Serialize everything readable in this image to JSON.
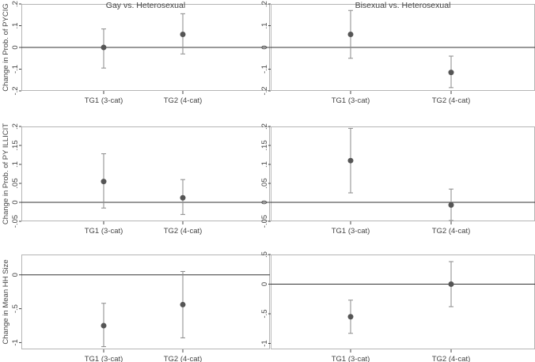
{
  "chart_data": [
    {
      "type": "scatter",
      "title": "Gay vs. Heterosexual",
      "ylabel": "Change in Prob. of PYCIG",
      "categories": [
        "TG1 (3-cat)",
        "TG2 (4-cat)"
      ],
      "ylim": [
        -0.2,
        0.2
      ],
      "yticks": [
        -0.2,
        -0.1,
        0,
        0.1,
        0.2
      ],
      "ytick_labels": [
        "-.2",
        "-.1",
        "0",
        ".1",
        ".2"
      ],
      "points": [
        {
          "category": "TG1 (3-cat)",
          "estimate": 0.0,
          "ci_low": -0.095,
          "ci_high": 0.085
        },
        {
          "category": "TG2 (4-cat)",
          "estimate": 0.06,
          "ci_low": -0.03,
          "ci_high": 0.155
        }
      ]
    },
    {
      "type": "scatter",
      "title": "Bisexual vs. Heterosexual",
      "ylabel": "",
      "categories": [
        "TG1 (3-cat)",
        "TG2 (4-cat)"
      ],
      "ylim": [
        -0.2,
        0.2
      ],
      "yticks": [
        -0.2,
        -0.1,
        0,
        0.1,
        0.2
      ],
      "ytick_labels": [
        "-.2",
        "-.1",
        "0",
        ".1",
        ".2"
      ],
      "points": [
        {
          "category": "TG1 (3-cat)",
          "estimate": 0.06,
          "ci_low": -0.05,
          "ci_high": 0.17
        },
        {
          "category": "TG2 (4-cat)",
          "estimate": -0.115,
          "ci_low": -0.185,
          "ci_high": -0.04
        }
      ]
    },
    {
      "type": "scatter",
      "title": "",
      "ylabel": "Change in Prob. of PY ILLICIT",
      "categories": [
        "TG1 (3-cat)",
        "TG2 (4-cat)"
      ],
      "ylim": [
        -0.05,
        0.2
      ],
      "yticks": [
        -0.05,
        0,
        0.05,
        0.1,
        0.15,
        0.2
      ],
      "ytick_labels": [
        "-.05",
        "0",
        ".05",
        ".1",
        ".15",
        ".2"
      ],
      "points": [
        {
          "category": "TG1 (3-cat)",
          "estimate": 0.055,
          "ci_low": -0.015,
          "ci_high": 0.128
        },
        {
          "category": "TG2 (4-cat)",
          "estimate": 0.012,
          "ci_low": -0.032,
          "ci_high": 0.06
        }
      ]
    },
    {
      "type": "scatter",
      "title": "",
      "ylabel": "",
      "categories": [
        "TG1 (3-cat)",
        "TG2 (4-cat)"
      ],
      "ylim": [
        -0.05,
        0.2
      ],
      "yticks": [
        -0.05,
        0,
        0.05,
        0.1,
        0.15,
        0.2
      ],
      "ytick_labels": [
        "-.05",
        "0",
        ".05",
        ".1",
        ".15",
        ".2"
      ],
      "points": [
        {
          "category": "TG1 (3-cat)",
          "estimate": 0.11,
          "ci_low": 0.025,
          "ci_high": 0.195
        },
        {
          "category": "TG2 (4-cat)",
          "estimate": -0.007,
          "ci_low": -0.048,
          "ci_high": 0.035
        }
      ]
    },
    {
      "type": "scatter",
      "title": "",
      "ylabel": "Change in Mean HH Size",
      "categories": [
        "TG1 (3-cat)",
        "TG2 (4-cat)"
      ],
      "ylim": [
        -1.1,
        0.3
      ],
      "yticks": [
        -1,
        -0.5,
        0
      ],
      "ytick_labels": [
        "-1",
        "-.5",
        "0"
      ],
      "points": [
        {
          "category": "TG1 (3-cat)",
          "estimate": -0.75,
          "ci_low": -1.06,
          "ci_high": -0.42
        },
        {
          "category": "TG2 (4-cat)",
          "estimate": -0.44,
          "ci_low": -0.93,
          "ci_high": 0.05
        }
      ]
    },
    {
      "type": "scatter",
      "title": "",
      "ylabel": "",
      "categories": [
        "TG1 (3-cat)",
        "TG2 (4-cat)"
      ],
      "ylim": [
        -1.1,
        0.5
      ],
      "yticks": [
        -1,
        -0.5,
        0,
        0.5
      ],
      "ytick_labels": [
        "-1",
        "-.5",
        "0",
        ".5"
      ],
      "points": [
        {
          "category": "TG1 (3-cat)",
          "estimate": -0.55,
          "ci_low": -0.83,
          "ci_high": -0.27
        },
        {
          "category": "TG2 (4-cat)",
          "estimate": 0.0,
          "ci_low": -0.38,
          "ci_high": 0.38
        }
      ]
    }
  ]
}
